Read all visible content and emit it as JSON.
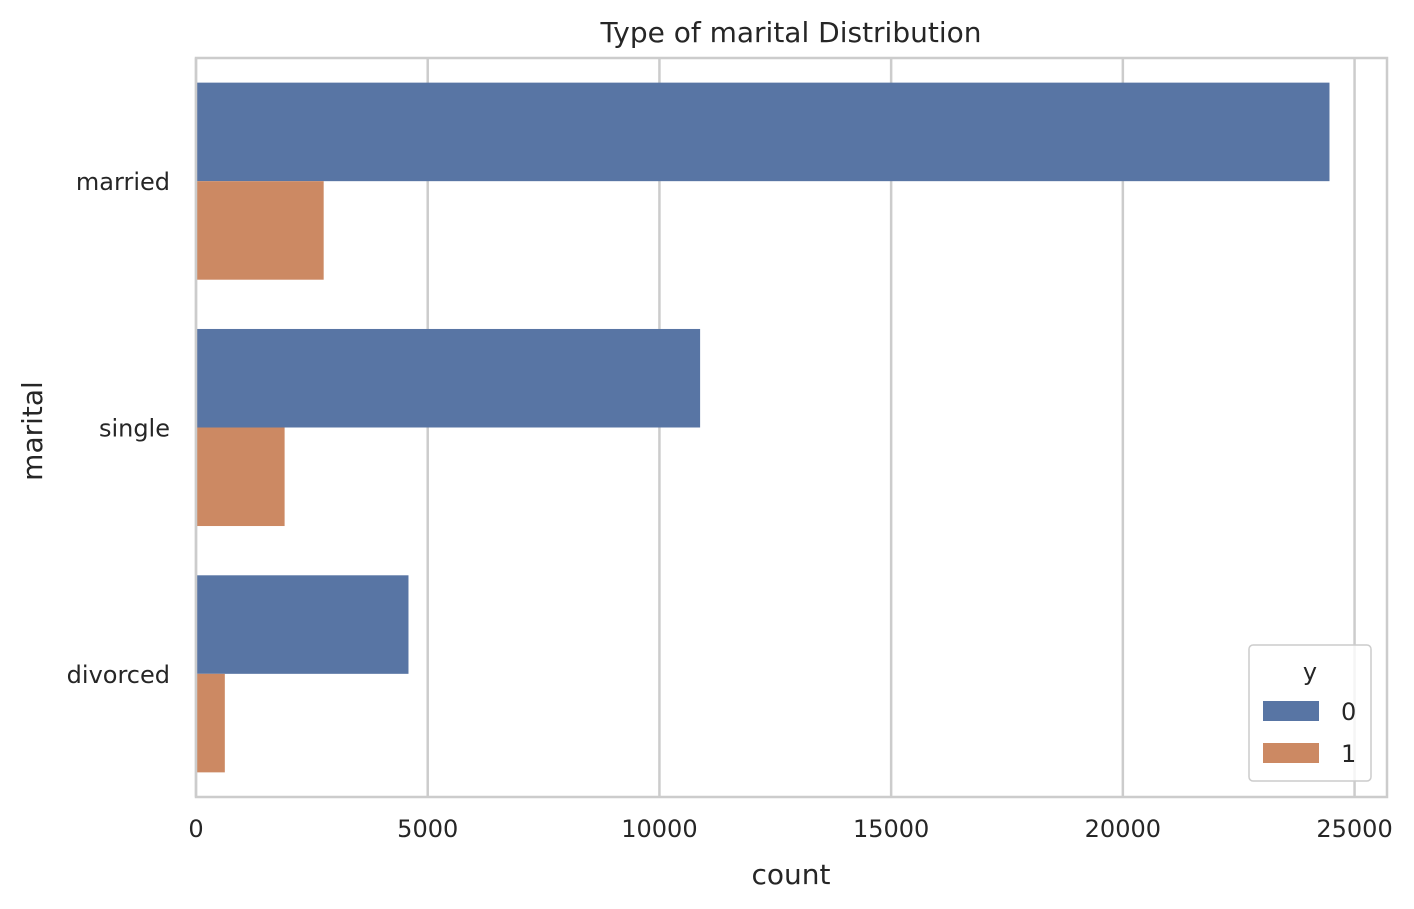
{
  "chart_data": {
    "type": "bar",
    "orientation": "horizontal",
    "title": "Type of marital Distribution",
    "xlabel": "count",
    "ylabel": "marital",
    "categories": [
      "married",
      "single",
      "divorced"
    ],
    "series": [
      {
        "name": "0",
        "values": [
          24459,
          10878,
          4585
        ],
        "color": "#5875a4"
      },
      {
        "name": "1",
        "values": [
          2755,
          1912,
          622
        ],
        "color": "#cc8963"
      }
    ],
    "xlim": [
      0,
      25700
    ],
    "xticks": [
      0,
      5000,
      10000,
      15000,
      20000,
      25000
    ],
    "grid": true,
    "legend": {
      "title": "y",
      "position": "bottom-right"
    }
  }
}
